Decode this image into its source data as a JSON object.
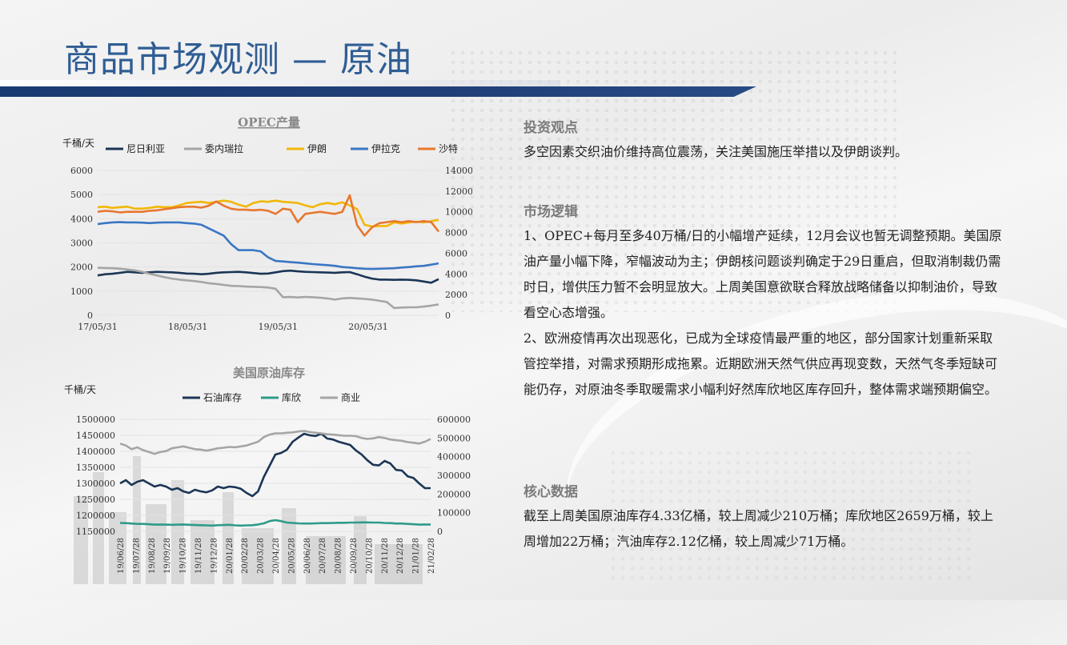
{
  "page": {
    "title": "商品市场观测 — 原油"
  },
  "chart_data": [
    {
      "type": "line",
      "title": "OPEC产量",
      "ylabel": "千桶/天",
      "ylim": [
        0,
        6000
      ],
      "y2lim": [
        0,
        14000
      ],
      "yticks": [
        "6000",
        "5000",
        "4000",
        "3000",
        "2000",
        "1000",
        "0"
      ],
      "y2ticks": [
        "14000",
        "12000",
        "10000",
        "8000",
        "6000",
        "4000",
        "2000",
        "0"
      ],
      "xticks": [
        "17/05/31",
        "18/05/31",
        "19/05/31",
        "20/05/31"
      ],
      "legend_position": "top",
      "series": [
        {
          "name": "尼日利亚",
          "axis": "left",
          "color": "#1b3555",
          "values": [
            1650,
            1700,
            1720,
            1760,
            1800,
            1780,
            1760,
            1780,
            1800,
            1790,
            1780,
            1760,
            1730,
            1720,
            1700,
            1720,
            1760,
            1780,
            1790,
            1800,
            1780,
            1750,
            1720,
            1730,
            1780,
            1830,
            1850,
            1820,
            1800,
            1790,
            1780,
            1770,
            1760,
            1780,
            1790,
            1700,
            1600,
            1520,
            1480,
            1480,
            1470,
            1480,
            1470,
            1450,
            1400,
            1350,
            1500
          ]
        },
        {
          "name": "委内瑞拉",
          "axis": "left",
          "color": "#a5a5a5",
          "values": [
            1970,
            1960,
            1950,
            1930,
            1900,
            1860,
            1800,
            1720,
            1650,
            1580,
            1520,
            1480,
            1450,
            1420,
            1380,
            1330,
            1300,
            1260,
            1220,
            1210,
            1190,
            1180,
            1170,
            1150,
            1100,
            750,
            760,
            740,
            760,
            750,
            730,
            700,
            650,
            700,
            720,
            700,
            680,
            650,
            600,
            550,
            300,
            320,
            330,
            330,
            360,
            400,
            450
          ]
        },
        {
          "name": "伊朗",
          "axis": "left",
          "color": "#f2b705",
          "values": [
            4480,
            4500,
            4450,
            4480,
            4500,
            4420,
            4420,
            4450,
            4500,
            4480,
            4480,
            4550,
            4650,
            4680,
            4700,
            4650,
            4700,
            4750,
            4700,
            4580,
            4500,
            4650,
            4720,
            4700,
            4750,
            4700,
            4680,
            4650,
            4550,
            4480,
            4600,
            4650,
            4600,
            4680,
            4550,
            4400,
            3750,
            3680,
            3700,
            3700,
            3850,
            3800,
            3850,
            3880,
            3850,
            3900,
            3950
          ]
        },
        {
          "name": "伊拉克",
          "axis": "left",
          "color": "#3a76c4",
          "values": [
            3780,
            3820,
            3850,
            3860,
            3850,
            3850,
            3840,
            3820,
            3840,
            3850,
            3850,
            3850,
            3820,
            3800,
            3750,
            3600,
            3450,
            3300,
            2950,
            2700,
            2700,
            2700,
            2650,
            2400,
            2250,
            2230,
            2200,
            2180,
            2150,
            2120,
            2100,
            2080,
            2050,
            2000,
            1980,
            1950,
            1930,
            1920,
            1930,
            1940,
            1950,
            1980,
            2000,
            2030,
            2050,
            2100,
            2150
          ]
        },
        {
          "name": "沙特",
          "axis": "right",
          "color": "#e8772e",
          "values": [
            10000,
            10100,
            10050,
            9950,
            10000,
            10000,
            10000,
            10100,
            10150,
            10250,
            10350,
            10450,
            10500,
            10500,
            10400,
            10600,
            11000,
            10600,
            10300,
            10200,
            10200,
            10150,
            10200,
            10100,
            9800,
            10300,
            10200,
            9000,
            9800,
            9900,
            10000,
            9900,
            9800,
            10000,
            11600,
            8700,
            7700,
            8500,
            8900,
            9000,
            9100,
            9000,
            9100,
            9000,
            9100,
            9000,
            8100
          ]
        }
      ]
    },
    {
      "type": "line",
      "title": "美国原油库存",
      "ylabel": "千桶/天",
      "ylim": [
        1150000,
        1500000
      ],
      "y2lim": [
        0,
        600000
      ],
      "yticks": [
        "1500000",
        "1450000",
        "1400000",
        "1350000",
        "1300000",
        "1250000",
        "1200000",
        "1150000"
      ],
      "y2ticks": [
        "600000",
        "500000",
        "400000",
        "300000",
        "200000",
        "100000",
        "0"
      ],
      "xticks": [
        "19/06/28",
        "19/07/28",
        "19/08/28",
        "19/09/28",
        "19/10/28",
        "19/11/28",
        "19/12/28",
        "20/01/28",
        "20/02/28",
        "20/03/28",
        "20/04/28",
        "20/05/28",
        "20/06/28",
        "20/07/28",
        "20/08/28",
        "20/09/28",
        "20/10/28",
        "20/11/28",
        "20/12/28",
        "21/01/28",
        "21/02/28"
      ],
      "legend_position": "top",
      "series": [
        {
          "name": "石油库存",
          "axis": "left",
          "color": "#1b3555",
          "values": [
            1300000,
            1310000,
            1295000,
            1305000,
            1310000,
            1300000,
            1290000,
            1295000,
            1290000,
            1280000,
            1285000,
            1275000,
            1270000,
            1280000,
            1275000,
            1272000,
            1278000,
            1290000,
            1285000,
            1290000,
            1288000,
            1283000,
            1270000,
            1260000,
            1275000,
            1320000,
            1355000,
            1390000,
            1395000,
            1405000,
            1430000,
            1443000,
            1455000,
            1450000,
            1448000,
            1455000,
            1440000,
            1437000,
            1430000,
            1425000,
            1420000,
            1403000,
            1390000,
            1372000,
            1358000,
            1356000,
            1370000,
            1362000,
            1342000,
            1340000,
            1322000,
            1317000,
            1300000,
            1285000,
            1285000
          ]
        },
        {
          "name": "库欣",
          "axis": "right",
          "color": "#2f9b8a",
          "values": [
            45000,
            44000,
            42000,
            40000,
            40000,
            38000,
            36000,
            37000,
            36000,
            35000,
            36000,
            37000,
            35000,
            34000,
            33000,
            32000,
            31000,
            33000,
            34000,
            35000,
            32000,
            31000,
            32000,
            33000,
            37000,
            43000,
            55000,
            60000,
            55000,
            47000,
            45000,
            43000,
            42000,
            42000,
            43000,
            44000,
            44000,
            45000,
            46000,
            46000,
            47000,
            47000,
            48000,
            48000,
            47000,
            47000,
            45000,
            44000,
            42000,
            42000,
            40000,
            38000,
            36000,
            37000,
            37000
          ]
        },
        {
          "name": "商业",
          "axis": "right",
          "color": "#a5a5a5",
          "values": [
            470000,
            460000,
            440000,
            450000,
            435000,
            425000,
            415000,
            425000,
            430000,
            445000,
            450000,
            455000,
            448000,
            440000,
            438000,
            432000,
            438000,
            445000,
            448000,
            452000,
            450000,
            455000,
            460000,
            470000,
            480000,
            505000,
            518000,
            525000,
            525000,
            528000,
            530000,
            535000,
            538000,
            532000,
            528000,
            525000,
            520000,
            518000,
            515000,
            512000,
            512000,
            510000,
            500000,
            495000,
            498000,
            505000,
            500000,
            492000,
            488000,
            485000,
            478000,
            475000,
            470000,
            480000,
            495000
          ]
        }
      ]
    }
  ],
  "right_panel": {
    "sections": [
      {
        "heading": "投资观点",
        "paragraphs": [
          "多空因素交织油价维持高位震荡，关注美国施压举措以及伊朗谈判。"
        ]
      },
      {
        "heading": "市场逻辑",
        "paragraphs": [
          "1、OPEC+每月至多40万桶/日的小幅增产延续，12月会议也暂无调整预期。美国原油产量小幅下降，窄幅波动为主；伊朗核问题谈判确定于29日重启，但取消制裁仍需时日，增供压力暂不会明显放大。上周美国意欲联合释放战略储备以抑制油价，导致看空心态增强。",
          "2、欧洲疫情再次出现恶化，已成为全球疫情最严重的地区，部分国家计划重新采取管控举措，对需求预期形成拖累。近期欧洲天然气供应再现变数，天然气冬季短缺可能仍存，对原油冬季取暖需求小幅利好然库欣地区库存回升，整体需求端预期偏空。"
        ]
      },
      {
        "heading": "核心数据",
        "paragraphs": [
          "截至上周美国原油库存4.33亿桶，较上周减少210万桶；库欣地区2659万桶，较上周增加22万桶；汽油库存2.12亿桶，较上周减少71万桶。"
        ]
      }
    ]
  }
}
